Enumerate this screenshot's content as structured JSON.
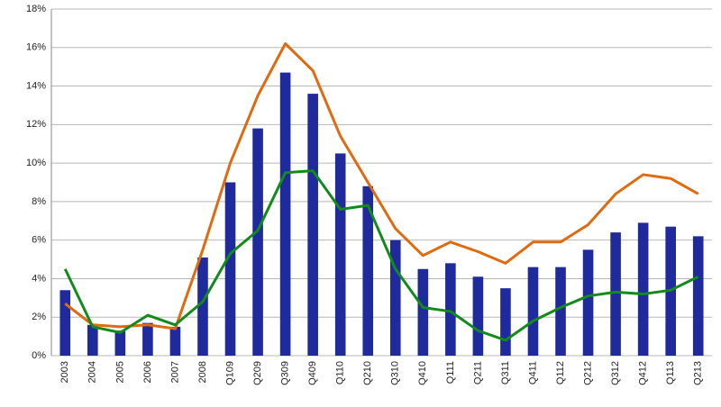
{
  "chart_data": {
    "type": "bar",
    "categories": [
      "2003",
      "2004",
      "2005",
      "2006",
      "2007",
      "2008",
      "Q109",
      "Q209",
      "Q309",
      "Q409",
      "Q110",
      "Q210",
      "Q310",
      "Q410",
      "Q111",
      "Q211",
      "Q311",
      "Q411",
      "Q112",
      "Q212",
      "Q312",
      "Q412",
      "Q113",
      "Q213"
    ],
    "series": [
      {
        "type": "bar",
        "color": "#1f2a9c",
        "values": [
          3.4,
          1.6,
          1.3,
          1.7,
          1.5,
          5.1,
          9.0,
          11.8,
          14.7,
          13.6,
          10.5,
          8.8,
          6.0,
          4.5,
          4.8,
          4.1,
          3.5,
          4.6,
          4.6,
          5.5,
          6.4,
          6.9,
          6.7,
          6.2
        ]
      },
      {
        "type": "line",
        "color": "#e06a10",
        "values": [
          2.7,
          1.6,
          1.5,
          1.6,
          1.4,
          5.5,
          10.0,
          13.5,
          16.2,
          14.8,
          11.4,
          9.0,
          6.6,
          5.2,
          5.9,
          5.4,
          4.8,
          5.9,
          5.9,
          6.8,
          8.4,
          9.4,
          9.2,
          8.4
        ]
      },
      {
        "type": "line",
        "color": "#138a1c",
        "values": [
          4.5,
          1.5,
          1.2,
          2.1,
          1.6,
          2.8,
          5.3,
          6.5,
          9.5,
          9.6,
          7.6,
          7.8,
          4.5,
          2.5,
          2.3,
          1.3,
          0.8,
          1.8,
          2.5,
          3.1,
          3.3,
          3.2,
          3.4,
          4.1
        ]
      }
    ],
    "ylim": [
      0,
      18
    ],
    "yticks": [
      {
        "value": 0,
        "label": "0%"
      },
      {
        "value": 2,
        "label": "2%"
      },
      {
        "value": 4,
        "label": "4%"
      },
      {
        "value": 6,
        "label": "6%"
      },
      {
        "value": 8,
        "label": "8%"
      },
      {
        "value": 10,
        "label": "10%"
      },
      {
        "value": 12,
        "label": "12%"
      },
      {
        "value": 14,
        "label": "14%"
      },
      {
        "value": 16,
        "label": "16%"
      },
      {
        "value": 18,
        "label": "18%"
      }
    ],
    "grid": true
  }
}
